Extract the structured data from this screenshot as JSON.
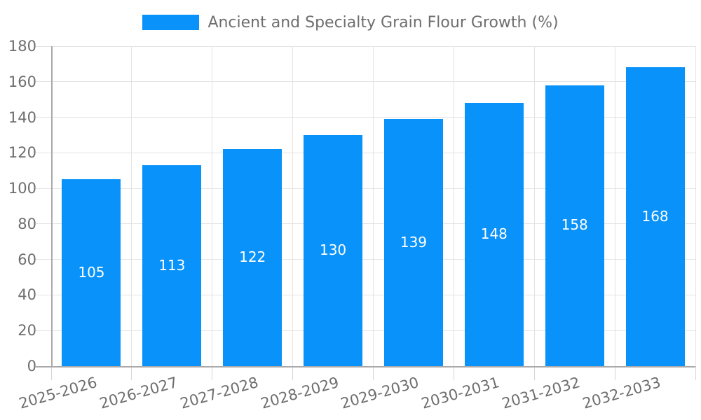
{
  "legend": {
    "title": "Ancient and Specialty Grain Flour Growth (%)"
  },
  "colors": {
    "bar": "#0992f9",
    "grid": "#e3e3e3",
    "axis": "#a9a9a9",
    "tick": "#d5d5d5",
    "tick_text": "#6e6e6e",
    "value_text": "#ffffff",
    "background": "#ffffff"
  },
  "chart_data": {
    "type": "bar",
    "title": "Ancient and Specialty Grain Flour Growth (%)",
    "categories": [
      "2025-2026",
      "2026-2027",
      "2027-2028",
      "2028-2029",
      "2029-2030",
      "2030-2031",
      "2031-2032",
      "2032-2033"
    ],
    "values": [
      105,
      113,
      122,
      130,
      139,
      148,
      158,
      168
    ],
    "xlabel": "",
    "ylabel": "",
    "ylim": [
      0,
      180
    ],
    "ytick_step": 20,
    "yticks": [
      0,
      20,
      40,
      60,
      80,
      100,
      120,
      140,
      160,
      180
    ],
    "grid": true,
    "legend_position": "top-center",
    "bar_color": "#0992f9",
    "value_label_style": "inside-center-white",
    "x_label_rotation_deg": -16
  }
}
